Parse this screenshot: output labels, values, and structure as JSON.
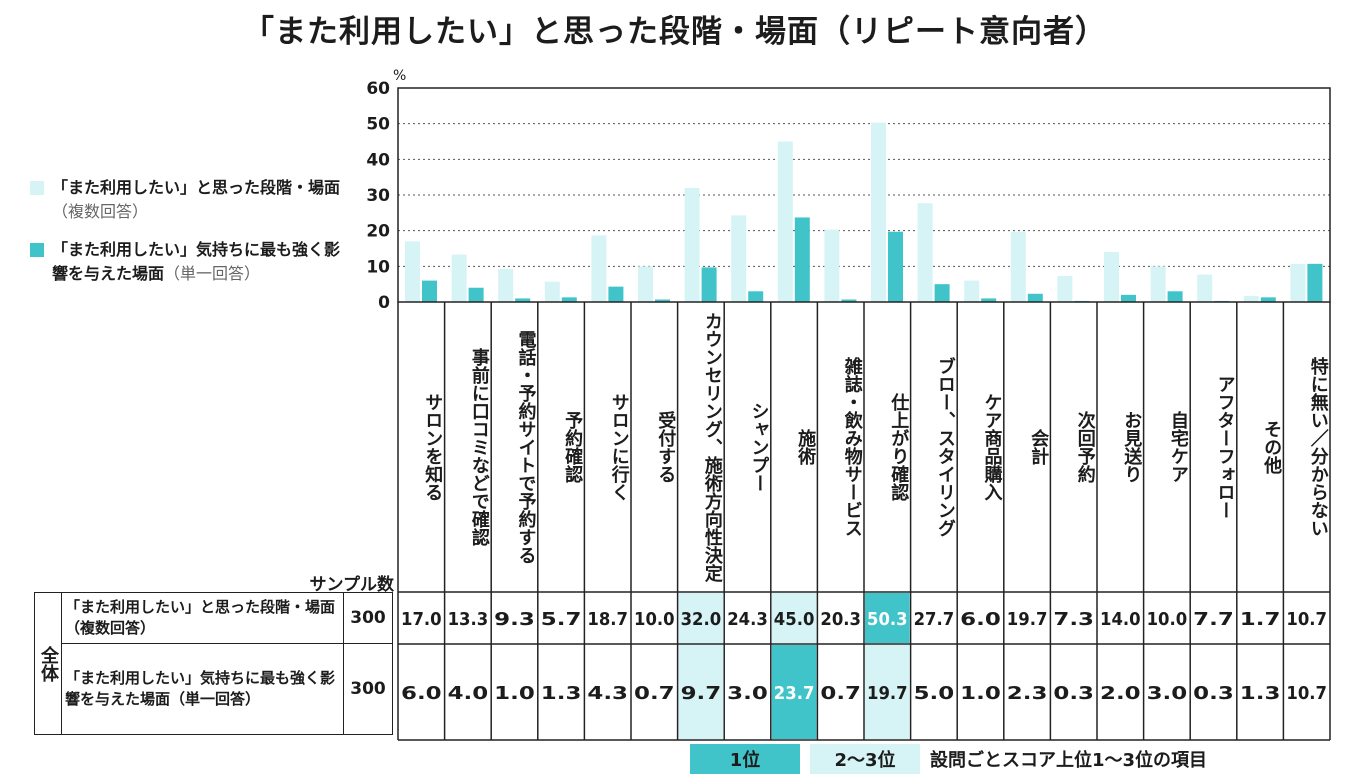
{
  "title": "「また利用したい」と思った段階・場面（リピート意向者）",
  "legend": {
    "multi": {
      "text": "「また利用したい」と思った段階・場面",
      "sub": "（複数回答）",
      "color": "#d6f4f6"
    },
    "single": {
      "text": "「また利用したい」気持ちに最も強く影響を与えた場面",
      "sub": "（単一回答）",
      "color": "#40c3c9"
    }
  },
  "colors": {
    "light": "#d6f4f6",
    "dark": "#40c3c9",
    "grid": "#555555"
  },
  "table": {
    "sample_header": "サンプル数",
    "group_label": "全体",
    "rows": [
      {
        "label": "「また利用したい」と思った段階・場面（複数回答）",
        "n": "300"
      },
      {
        "label": "「また利用したい」気持ちに最も強く影響を与えた場面（単一回答）",
        "n": "300"
      }
    ]
  },
  "footer": {
    "rank1": "1位",
    "rank23": "2〜3位",
    "note": "設問ごとスコア上位1〜3位の項目"
  },
  "chart_data": {
    "type": "bar",
    "ylabel": "%",
    "ylim": [
      0,
      60
    ],
    "yticks": [
      0,
      10,
      20,
      30,
      40,
      50,
      60
    ],
    "grid": true,
    "legend_position": "left",
    "categories": [
      "サロンを知る",
      "事前に口コミなどで確認",
      "電話・予約サイトで予約する",
      "予約確認",
      "サロンに行く",
      "受付する",
      "カウンセリング、施術方向性決定",
      "シャンプー",
      "施術",
      "雑誌・飲み物サービス",
      "仕上がり確認",
      "ブロー、スタイリング",
      "ケア商品購入",
      "会計",
      "次回予約",
      "お見送り",
      "自宅ケア",
      "アフターフォロー",
      "その他",
      "特に無い／分からない"
    ],
    "series": [
      {
        "name": "「また利用したい」と思った段階・場面（複数回答）",
        "values": [
          17.0,
          13.3,
          9.3,
          5.7,
          18.7,
          10.0,
          32.0,
          24.3,
          45.0,
          20.3,
          50.3,
          27.7,
          6.0,
          19.7,
          7.3,
          14.0,
          10.0,
          7.7,
          1.7,
          10.7
        ],
        "labels": [
          "17.0",
          "13.3",
          "9.3",
          "5.7",
          "18.7",
          "10.0",
          "32.0",
          "24.3",
          "45.0",
          "20.3",
          "50.3",
          "27.7",
          "6.0",
          "19.7",
          "7.3",
          "14.0",
          "10.0",
          "7.7",
          "1.7",
          "10.7"
        ],
        "highlight": [
          "",
          "",
          "",
          "",
          "",
          "",
          "2",
          "",
          "2",
          "",
          "1",
          "",
          "",
          "",
          "",
          "",
          "",
          "",
          "",
          ""
        ]
      },
      {
        "name": "「また利用したい」気持ちに最も強く影響を与えた場面（単一回答）",
        "values": [
          6.0,
          4.0,
          1.0,
          1.3,
          4.3,
          0.7,
          9.7,
          3.0,
          23.7,
          0.7,
          19.7,
          5.0,
          1.0,
          2.3,
          0.3,
          2.0,
          3.0,
          0.3,
          1.3,
          10.7
        ],
        "labels": [
          "6.0",
          "4.0",
          "1.0",
          "1.3",
          "4.3",
          "0.7",
          "9.7",
          "3.0",
          "23.7",
          "0.7",
          "19.7",
          "5.0",
          "1.0",
          "2.3",
          "0.3",
          "2.0",
          "3.0",
          "0.3",
          "1.3",
          "10.7"
        ],
        "highlight": [
          "",
          "",
          "",
          "",
          "",
          "",
          "2",
          "",
          "1",
          "",
          "2",
          "",
          "",
          "",
          "",
          "",
          "",
          "",
          "",
          ""
        ]
      }
    ]
  }
}
